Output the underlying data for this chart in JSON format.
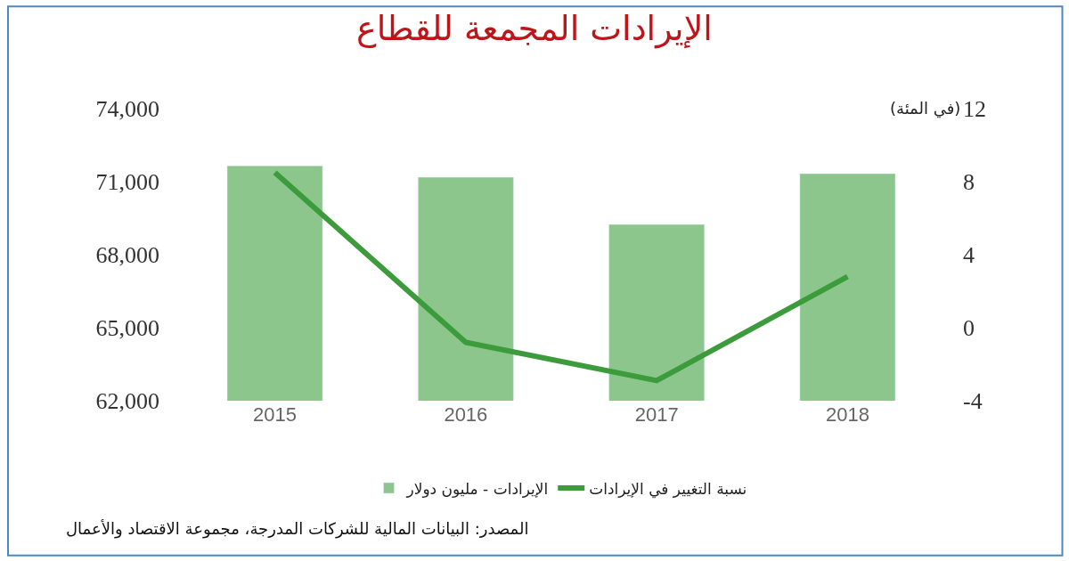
{
  "chart_data": {
    "type": "bar",
    "title": "الإيرادات المجمعة للقطاع",
    "y2label": "(في المئة)",
    "categories": [
      "2015",
      "2016",
      "2017",
      "2018"
    ],
    "series": [
      {
        "name": "الإيرادات - مليون دولار",
        "color": "#8cc68c",
        "values": [
          71650,
          71180,
          69240,
          71330
        ]
      },
      {
        "name": "نسبة التغيير في الإيرادات",
        "type": "line",
        "axis": "y2",
        "color": "#3c9c3c",
        "values": [
          8.5,
          -0.8,
          -2.9,
          2.8
        ]
      }
    ],
    "ylim": [
      62000,
      74000
    ],
    "yticks": [
      {
        "value": 62000,
        "label": "62,000"
      },
      {
        "value": 65000,
        "label": "65,000"
      },
      {
        "value": 68000,
        "label": "68,000"
      },
      {
        "value": 71000,
        "label": "71,000"
      },
      {
        "value": 74000,
        "label": "74,000"
      }
    ],
    "y2lim": [
      -4,
      12
    ],
    "y2ticks": [
      -4,
      0,
      4,
      8,
      12
    ],
    "legend": "bottom",
    "marker": "none",
    "line_style": "solid",
    "annotations": [
      "المصدر: البيانات المالية للشركات المدرجة، مجموعة الاقتصاد والأعمال"
    ]
  }
}
